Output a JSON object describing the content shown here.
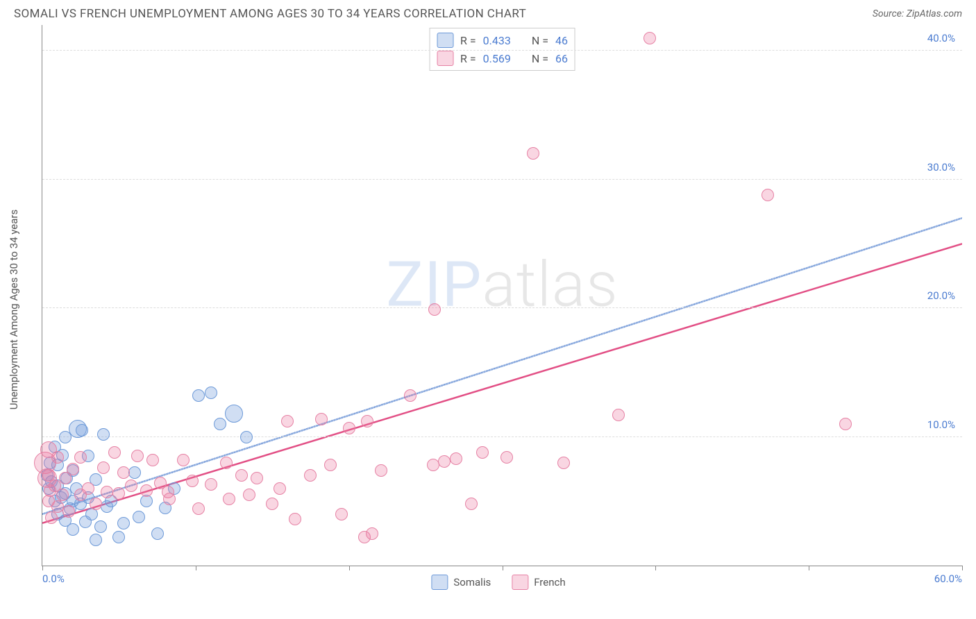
{
  "title": "SOMALI VS FRENCH UNEMPLOYMENT AMONG AGES 30 TO 34 YEARS CORRELATION CHART",
  "source": "Source: ZipAtlas.com",
  "watermark": {
    "part1": "ZIP",
    "part2": "atlas"
  },
  "chart": {
    "type": "scatter-correlation",
    "ylabel": "Unemployment Among Ages 30 to 34 years",
    "xlim": [
      0,
      60
    ],
    "ylim": [
      0,
      42
    ],
    "xticks": [
      0,
      10,
      20,
      30,
      40,
      50,
      60
    ],
    "xtick_labels": {
      "0": "0.0%",
      "60": "60.0%"
    },
    "yticks": [
      10,
      20,
      30,
      40
    ],
    "ytick_labels": {
      "10": "10.0%",
      "20": "20.0%",
      "30": "30.0%",
      "40": "40.0%"
    },
    "grid_color": "#dddddd",
    "axis_color": "#888888",
    "tick_label_color": "#4a7bd0",
    "background_color": "#ffffff",
    "marker_radius": 9,
    "series": [
      {
        "name": "Somalis",
        "fill": "rgba(120,160,220,0.35)",
        "stroke": "#6c99d8",
        "trend_color": "#3a6fc7",
        "trend_dash": "6 5",
        "trend": {
          "x1": 0,
          "y1": 4.0,
          "x2": 60,
          "y2": 27.0
        },
        "R": "0.433",
        "N": "46",
        "points": [
          [
            0.3,
            7.0
          ],
          [
            0.4,
            6.0
          ],
          [
            0.5,
            8.0
          ],
          [
            0.6,
            6.5
          ],
          [
            0.8,
            5.0
          ],
          [
            0.8,
            9.2
          ],
          [
            1.0,
            4.0
          ],
          [
            1.0,
            6.2
          ],
          [
            1.0,
            7.8
          ],
          [
            1.2,
            5.3
          ],
          [
            1.3,
            8.6
          ],
          [
            1.5,
            3.5
          ],
          [
            1.5,
            5.6
          ],
          [
            1.5,
            10.0
          ],
          [
            1.6,
            6.8
          ],
          [
            1.8,
            4.4
          ],
          [
            2.0,
            5.0
          ],
          [
            2.0,
            7.4
          ],
          [
            2.0,
            2.8
          ],
          [
            2.2,
            6.0
          ],
          [
            2.3,
            10.6,
            13
          ],
          [
            2.5,
            4.8
          ],
          [
            2.6,
            10.5
          ],
          [
            2.8,
            3.4
          ],
          [
            3.0,
            5.3
          ],
          [
            3.0,
            8.5
          ],
          [
            3.2,
            4.0
          ],
          [
            3.5,
            6.7
          ],
          [
            3.5,
            2.0
          ],
          [
            3.8,
            3.0
          ],
          [
            4.0,
            10.2
          ],
          [
            4.2,
            4.6
          ],
          [
            4.5,
            5.0
          ],
          [
            5.0,
            2.2
          ],
          [
            5.3,
            3.3
          ],
          [
            6.0,
            7.2
          ],
          [
            6.3,
            3.8
          ],
          [
            6.8,
            5.0
          ],
          [
            7.5,
            2.5
          ],
          [
            8.0,
            4.5
          ],
          [
            8.6,
            6.0
          ],
          [
            10.2,
            13.2
          ],
          [
            11.0,
            13.4
          ],
          [
            11.6,
            11.0
          ],
          [
            12.5,
            11.8,
            13
          ],
          [
            13.3,
            10.0
          ]
        ]
      },
      {
        "name": "French",
        "fill": "rgba(236,120,160,0.30)",
        "stroke": "#e681a4",
        "trend_color": "#e24f85",
        "trend_dash": "",
        "trend": {
          "x1": 0,
          "y1": 3.3,
          "x2": 60,
          "y2": 25.0
        },
        "R": "0.569",
        "N": "66",
        "points": [
          [
            0.2,
            8.0,
            16
          ],
          [
            0.3,
            6.8,
            14
          ],
          [
            0.4,
            5.0
          ],
          [
            0.4,
            7.0
          ],
          [
            0.4,
            9.0,
            12
          ],
          [
            0.5,
            5.8
          ],
          [
            0.6,
            3.7
          ],
          [
            0.8,
            6.2
          ],
          [
            1.0,
            4.6
          ],
          [
            1.0,
            8.4
          ],
          [
            1.3,
            5.5
          ],
          [
            1.5,
            6.8
          ],
          [
            1.7,
            4.2
          ],
          [
            2.0,
            7.5
          ],
          [
            2.5,
            5.5
          ],
          [
            2.5,
            8.4
          ],
          [
            3.0,
            6.0
          ],
          [
            3.5,
            4.8
          ],
          [
            4.0,
            7.6
          ],
          [
            4.2,
            5.7
          ],
          [
            4.7,
            8.8
          ],
          [
            5.0,
            5.6
          ],
          [
            5.3,
            7.2
          ],
          [
            5.8,
            6.2
          ],
          [
            6.2,
            8.5
          ],
          [
            6.8,
            5.8
          ],
          [
            7.2,
            8.2
          ],
          [
            7.7,
            6.4
          ],
          [
            8.2,
            5.7
          ],
          [
            8.3,
            5.2
          ],
          [
            9.2,
            8.2
          ],
          [
            9.8,
            6.6
          ],
          [
            10.2,
            4.4
          ],
          [
            11.0,
            6.3
          ],
          [
            12.0,
            8.0
          ],
          [
            12.2,
            5.2
          ],
          [
            13.0,
            7.0
          ],
          [
            13.5,
            5.5
          ],
          [
            14.0,
            6.8
          ],
          [
            15.0,
            4.8
          ],
          [
            15.5,
            6.0
          ],
          [
            16.0,
            11.2
          ],
          [
            16.5,
            3.6
          ],
          [
            17.5,
            7.0
          ],
          [
            18.2,
            11.4
          ],
          [
            18.8,
            7.8
          ],
          [
            19.5,
            4.0
          ],
          [
            20.0,
            10.7
          ],
          [
            21.0,
            2.2
          ],
          [
            21.2,
            11.2
          ],
          [
            21.5,
            2.5
          ],
          [
            22.1,
            7.4
          ],
          [
            24.0,
            13.2
          ],
          [
            25.5,
            7.8
          ],
          [
            25.6,
            19.9
          ],
          [
            26.2,
            8.1
          ],
          [
            27.0,
            8.3
          ],
          [
            28.0,
            4.8
          ],
          [
            28.7,
            8.8
          ],
          [
            30.3,
            8.4
          ],
          [
            32.0,
            32.0
          ],
          [
            34.0,
            8.0
          ],
          [
            37.6,
            11.7
          ],
          [
            39.6,
            41.0
          ],
          [
            47.3,
            28.8
          ],
          [
            52.4,
            11.0
          ]
        ]
      }
    ],
    "legend_labels": {
      "somalis": "Somalis",
      "french": "French"
    }
  }
}
